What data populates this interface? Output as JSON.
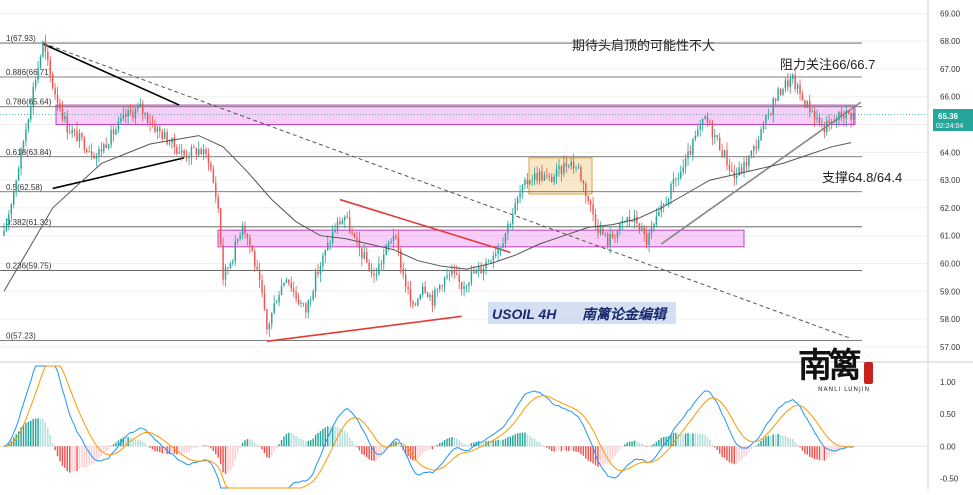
{
  "chart_data": {
    "type": "candlestick",
    "symbol_label": "USOIL 4H",
    "author_label": "南篱论金编辑",
    "price_axis": {
      "ticks": [
        "69.00",
        "68.00",
        "67.00",
        "66.00",
        "65.00",
        "64.00",
        "63.00",
        "62.00",
        "61.00",
        "60.00",
        "59.00",
        "58.00",
        "57.00"
      ],
      "range": [
        56.6,
        69.3
      ]
    },
    "current_price": {
      "value": "65.36",
      "countdown": "02:24:04",
      "color": "#26a69a"
    },
    "fib_levels": [
      {
        "label": "1(67.93)",
        "value": 67.93
      },
      {
        "label": "0.886(66.71)",
        "value": 66.71
      },
      {
        "label": "0.786(65.64)",
        "value": 65.64
      },
      {
        "label": "0.618(63.84)",
        "value": 63.84
      },
      {
        "label": "0.5(62.58)",
        "value": 62.58
      },
      {
        "label": "0.382(61.32)",
        "value": 61.32
      },
      {
        "label": "0.236(59.75)",
        "value": 59.75
      },
      {
        "label": "0(57.23)",
        "value": 57.23
      }
    ],
    "annotations": [
      {
        "text": "期待头肩顶的可能性不大"
      },
      {
        "text": "阻力关注66/66.7"
      },
      {
        "text": "支撑64.8/64.4"
      }
    ],
    "zones": [
      {
        "name": "resistance-zone",
        "from": 65.0,
        "to": 65.7,
        "color": "#f0a6f0"
      },
      {
        "name": "support-zone",
        "from": 60.6,
        "to": 61.2,
        "color": "#f0a6f0"
      },
      {
        "name": "consolidation-box",
        "from": 62.5,
        "to": 63.8,
        "color": "#f5d39a"
      }
    ],
    "close_path": [
      [
        0,
        61.0
      ],
      [
        6,
        63.5
      ],
      [
        12,
        66.3
      ],
      [
        16,
        67.9
      ],
      [
        20,
        66.4
      ],
      [
        26,
        64.9
      ],
      [
        32,
        64.4
      ],
      [
        38,
        63.9
      ],
      [
        44,
        64.6
      ],
      [
        50,
        65.3
      ],
      [
        56,
        65.6
      ],
      [
        62,
        64.9
      ],
      [
        68,
        64.4
      ],
      [
        74,
        63.9
      ],
      [
        80,
        64.1
      ],
      [
        84,
        63.8
      ],
      [
        88,
        62.0
      ],
      [
        90,
        59.5
      ],
      [
        94,
        60.3
      ],
      [
        98,
        61.5
      ],
      [
        102,
        60.4
      ],
      [
        106,
        58.8
      ],
      [
        108,
        57.6
      ],
      [
        112,
        58.8
      ],
      [
        116,
        59.6
      ],
      [
        120,
        58.8
      ],
      [
        124,
        58.3
      ],
      [
        128,
        59.5
      ],
      [
        132,
        60.4
      ],
      [
        136,
        61.3
      ],
      [
        140,
        61.7
      ],
      [
        144,
        60.8
      ],
      [
        148,
        60.2
      ],
      [
        152,
        59.5
      ],
      [
        156,
        60.3
      ],
      [
        160,
        61.1
      ],
      [
        164,
        59.6
      ],
      [
        168,
        58.3
      ],
      [
        172,
        59.3
      ],
      [
        176,
        58.7
      ],
      [
        180,
        59.4
      ],
      [
        184,
        59.6
      ],
      [
        188,
        59.2
      ],
      [
        192,
        59.6
      ],
      [
        196,
        59.8
      ],
      [
        200,
        60.3
      ],
      [
        204,
        60.7
      ],
      [
        208,
        61.6
      ],
      [
        212,
        62.5
      ],
      [
        216,
        63.1
      ],
      [
        220,
        63.2
      ],
      [
        224,
        63.0
      ],
      [
        228,
        63.3
      ],
      [
        232,
        63.7
      ],
      [
        236,
        63.4
      ],
      [
        240,
        62.3
      ],
      [
        244,
        61.3
      ],
      [
        248,
        60.8
      ],
      [
        252,
        61.2
      ],
      [
        256,
        61.6
      ],
      [
        260,
        61.5
      ],
      [
        264,
        60.8
      ],
      [
        268,
        61.5
      ],
      [
        272,
        62.3
      ],
      [
        276,
        63.0
      ],
      [
        280,
        63.6
      ],
      [
        284,
        64.5
      ],
      [
        288,
        65.2
      ],
      [
        292,
        64.6
      ],
      [
        296,
        63.9
      ],
      [
        300,
        63.1
      ],
      [
        304,
        63.5
      ],
      [
        308,
        64.1
      ],
      [
        312,
        64.9
      ],
      [
        316,
        65.8
      ],
      [
        320,
        66.4
      ],
      [
        324,
        66.6
      ],
      [
        328,
        65.9
      ],
      [
        332,
        65.5
      ],
      [
        336,
        64.9
      ],
      [
        340,
        65.0
      ],
      [
        344,
        65.4
      ],
      [
        348,
        65.36
      ]
    ],
    "ma_path": [
      [
        0,
        59.0
      ],
      [
        20,
        62.0
      ],
      [
        40,
        63.6
      ],
      [
        60,
        64.3
      ],
      [
        80,
        64.6
      ],
      [
        90,
        64.2
      ],
      [
        100,
        63.3
      ],
      [
        110,
        62.3
      ],
      [
        120,
        61.5
      ],
      [
        130,
        61.0
      ],
      [
        140,
        60.9
      ],
      [
        150,
        60.7
      ],
      [
        160,
        60.5
      ],
      [
        170,
        60.1
      ],
      [
        180,
        59.9
      ],
      [
        190,
        59.8
      ],
      [
        200,
        60.0
      ],
      [
        210,
        60.3
      ],
      [
        220,
        60.7
      ],
      [
        230,
        61.0
      ],
      [
        240,
        61.3
      ],
      [
        250,
        61.4
      ],
      [
        260,
        61.6
      ],
      [
        270,
        62.0
      ],
      [
        280,
        62.5
      ],
      [
        290,
        63.0
      ],
      [
        300,
        63.2
      ],
      [
        310,
        63.4
      ],
      [
        320,
        63.6
      ],
      [
        330,
        63.9
      ],
      [
        340,
        64.2
      ],
      [
        348,
        64.35
      ]
    ],
    "trendlines": [
      {
        "name": "long-descending-dashed",
        "style": "dashed",
        "color": "#555555",
        "points": [
          [
            16,
            67.93
          ],
          [
            348,
            57.3
          ]
        ]
      },
      {
        "name": "left-upper-line",
        "style": "solid",
        "color": "#000000",
        "points": [
          [
            16,
            67.9
          ],
          [
            72,
            65.7
          ]
        ]
      },
      {
        "name": "left-lower-line",
        "style": "solid",
        "color": "#000000",
        "points": [
          [
            20,
            62.7
          ],
          [
            74,
            63.8
          ]
        ]
      },
      {
        "name": "triangle-upper",
        "style": "solid",
        "color": "#e53935",
        "points": [
          [
            138,
            62.3
          ],
          [
            208,
            60.4
          ]
        ]
      },
      {
        "name": "triangle-lower",
        "style": "solid",
        "color": "#e53935",
        "points": [
          [
            108,
            57.2
          ],
          [
            188,
            58.1
          ]
        ]
      },
      {
        "name": "rising-support",
        "style": "solid",
        "color": "#888888",
        "points": [
          [
            270,
            60.7
          ],
          [
            352,
            65.8
          ]
        ]
      }
    ],
    "macd": {
      "ticks": [
        "1.00",
        "0.50",
        "0.00",
        "-0.50"
      ],
      "range": [
        -0.65,
        1.25
      ]
    }
  }
}
